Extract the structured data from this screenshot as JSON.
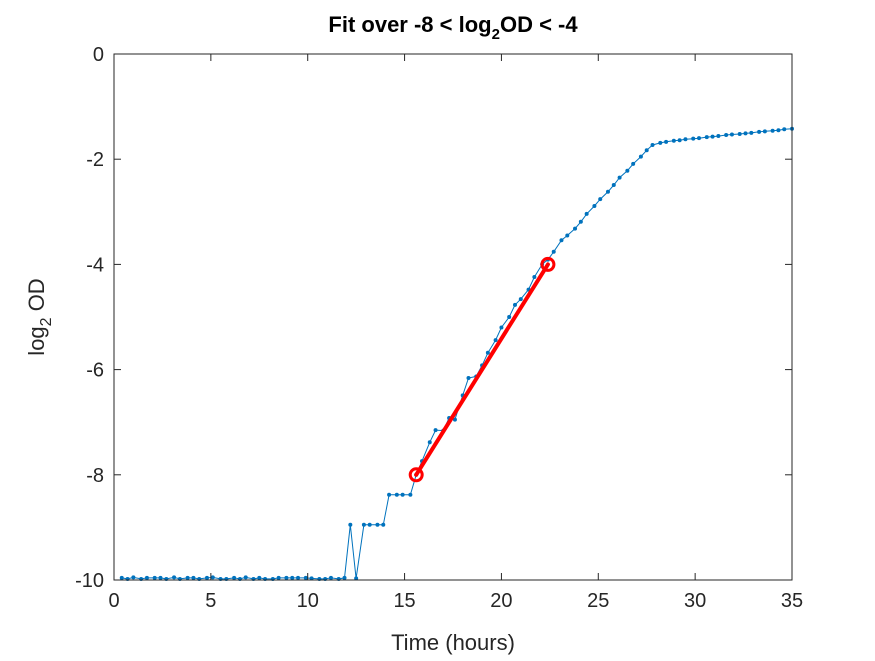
{
  "chart_data": {
    "type": "line",
    "title": "Fit over -8 < log",
    "title_sub": "2",
    "title_end": "OD < -4",
    "xlabel": "Time (hours)",
    "ylabel_main": "log",
    "ylabel_sub": "2",
    "ylabel_end": " OD",
    "xlim": [
      0,
      35
    ],
    "ylim": [
      -10,
      0
    ],
    "xticks": [
      0,
      5,
      10,
      15,
      20,
      25,
      30,
      35
    ],
    "yticks": [
      -10,
      -8,
      -6,
      -4,
      -2,
      0
    ],
    "xtick_labels": [
      "0",
      "5",
      "10",
      "15",
      "20",
      "25",
      "30",
      "35"
    ],
    "ytick_labels": [
      "-10",
      "-8",
      "-6",
      "-4",
      "-2",
      "0"
    ],
    "grid": false,
    "colors": {
      "data": "#0072BD",
      "fit": "#FF0000",
      "axis": "#262626"
    },
    "series": [
      {
        "role": "measured",
        "x": [
          0.4,
          0.7,
          1.0,
          1.4,
          1.7,
          2.1,
          2.4,
          2.7,
          3.1,
          3.4,
          3.8,
          4.1,
          4.4,
          4.8,
          5.1,
          5.5,
          5.8,
          6.2,
          6.5,
          6.8,
          7.2,
          7.5,
          7.8,
          8.2,
          8.5,
          8.9,
          9.2,
          9.5,
          9.9,
          10.2,
          10.6,
          10.9,
          11.2,
          11.6,
          11.9,
          12.2,
          12.5,
          12.9,
          13.2,
          13.6,
          13.9,
          14.2,
          14.6,
          14.9,
          15.3,
          15.6,
          15.9,
          16.3,
          16.6,
          17.0,
          17.3,
          17.6,
          18.0,
          18.3,
          18.7,
          19.0,
          19.3,
          19.7,
          20.0,
          20.4,
          20.7,
          21.0,
          21.4,
          21.7,
          22.1,
          22.4,
          22.7,
          23.1,
          23.4,
          23.8,
          24.1,
          24.4,
          24.8,
          25.1,
          25.5,
          25.8,
          26.1,
          26.5,
          26.8,
          27.2,
          27.5,
          27.8,
          28.2,
          28.5,
          28.9,
          29.2,
          29.5,
          29.9,
          30.2,
          30.6,
          30.9,
          31.2,
          31.6,
          31.9,
          32.3,
          32.6,
          32.9,
          33.3,
          33.6,
          34.0,
          34.3,
          34.6,
          35.0
        ],
        "y": [
          -9.96,
          -9.98,
          -9.95,
          -9.98,
          -9.96,
          -9.96,
          -9.96,
          -9.98,
          -9.95,
          -9.98,
          -9.96,
          -9.96,
          -9.98,
          -9.96,
          -9.95,
          -9.98,
          -9.98,
          -9.96,
          -9.98,
          -9.95,
          -9.98,
          -9.96,
          -9.98,
          -9.98,
          -9.96,
          -9.96,
          -9.96,
          -9.96,
          -9.96,
          -9.97,
          -9.98,
          -9.98,
          -9.96,
          -9.98,
          -9.96,
          -8.95,
          -9.97,
          -8.95,
          -8.95,
          -8.95,
          -8.95,
          -8.38,
          -8.38,
          -8.38,
          -8.38,
          -8.0,
          -7.74,
          -7.38,
          -7.15,
          -7.16,
          -6.92,
          -6.95,
          -6.49,
          -6.16,
          -6.13,
          -5.92,
          -5.68,
          -5.44,
          -5.2,
          -5.0,
          -4.77,
          -4.66,
          -4.48,
          -4.24,
          -4.0,
          -3.91,
          -3.76,
          -3.54,
          -3.45,
          -3.32,
          -3.19,
          -3.04,
          -2.89,
          -2.76,
          -2.62,
          -2.49,
          -2.35,
          -2.22,
          -2.09,
          -1.95,
          -1.83,
          -1.73,
          -1.69,
          -1.67,
          -1.65,
          -1.64,
          -1.62,
          -1.61,
          -1.6,
          -1.58,
          -1.57,
          -1.56,
          -1.54,
          -1.53,
          -1.52,
          -1.51,
          -1.5,
          -1.48,
          -1.47,
          -1.46,
          -1.45,
          -1.43,
          -1.42
        ]
      },
      {
        "role": "fit",
        "x": [
          15.6,
          22.4
        ],
        "y": [
          -8.0,
          -4.0
        ]
      }
    ],
    "fit_endpoints": {
      "x": [
        15.6,
        22.4
      ],
      "y": [
        -8.0,
        -4.0
      ]
    }
  }
}
